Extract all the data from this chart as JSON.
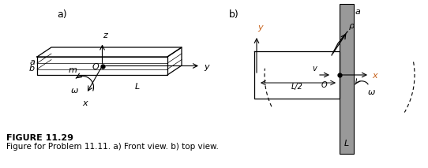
{
  "fig_width": 5.42,
  "fig_height": 2.13,
  "dpi": 100,
  "background": "#ffffff",
  "figure_label": "FIGURE 11.29",
  "caption": "Figure for Problem 11.11. a) Front view. b) top view.",
  "label_a": "a)",
  "label_b": "b)",
  "shaft_color": "#999999",
  "text_color": "#000000",
  "axes_color": "#c8641e"
}
